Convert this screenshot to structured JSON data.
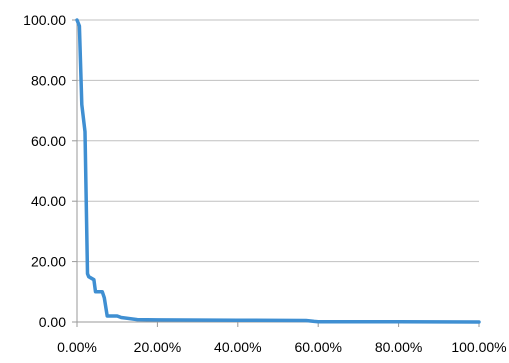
{
  "chart_data": {
    "type": "line",
    "title": "",
    "xlabel": "",
    "ylabel": "",
    "xlim": [
      0,
      100
    ],
    "ylim": [
      0,
      100
    ],
    "x_ticks": [
      0,
      20,
      40,
      60,
      80,
      100
    ],
    "x_tick_labels": [
      "0.00%",
      "20.00%",
      "40.00%",
      "60.00%",
      "80.00%",
      "100.00%"
    ],
    "y_ticks": [
      0,
      20,
      40,
      60,
      80,
      100
    ],
    "y_tick_labels": [
      "0.00",
      "20.00",
      "40.00",
      "60.00",
      "80.00",
      "100.00"
    ],
    "grid": "horizontal",
    "legend": "none",
    "colors": {
      "line": "#3f8fd2",
      "grid": "#c0c0c0",
      "axis": "#9a9a9a"
    },
    "series": [
      {
        "x": [
          0,
          0.6,
          1.2,
          2.0,
          2.6,
          2.9,
          4.2,
          4.6,
          6.3,
          6.8,
          7.5,
          10,
          11,
          15,
          20,
          40,
          57,
          59,
          60,
          80,
          100
        ],
        "y": [
          100,
          98,
          72,
          63,
          16,
          15,
          14,
          10,
          10,
          8,
          2,
          2,
          1.5,
          0.8,
          0.7,
          0.6,
          0.5,
          0.2,
          0.1,
          0.05,
          0
        ]
      }
    ]
  }
}
